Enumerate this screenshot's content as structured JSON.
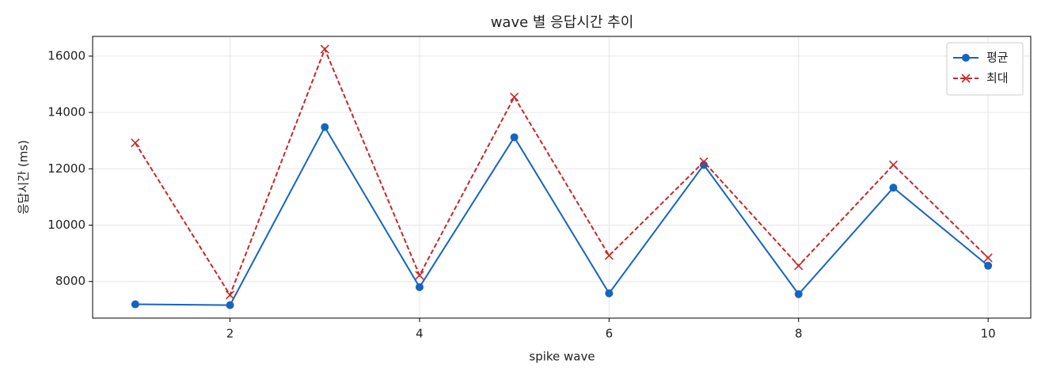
{
  "chart_data": {
    "type": "line",
    "title": "wave 별 응답시간 추이",
    "x_label": "spike wave",
    "y_label": "응답시간 (ms)",
    "x": [
      1,
      2,
      3,
      4,
      5,
      6,
      7,
      8,
      9,
      10
    ],
    "series": [
      {
        "name": "평균",
        "color": "#1565c0",
        "marker": "o",
        "linestyle": "solid",
        "values": [
          7190,
          7160,
          13480,
          7800,
          13120,
          7580,
          12140,
          7550,
          11330,
          8560
        ]
      },
      {
        "name": "최대",
        "color": "#c62828",
        "marker": "x",
        "linestyle": "dashed",
        "values": [
          12920,
          7520,
          16250,
          8220,
          14550,
          8920,
          12250,
          8560,
          12140,
          8840
        ]
      }
    ],
    "xlim": [
      0.55,
      10.45
    ],
    "xticks": [
      2,
      4,
      6,
      8,
      10
    ],
    "ylim": [
      6700,
      16700
    ],
    "yticks": [
      8000,
      10000,
      12000,
      14000,
      16000
    ],
    "grid": true,
    "legend": "upper right"
  }
}
